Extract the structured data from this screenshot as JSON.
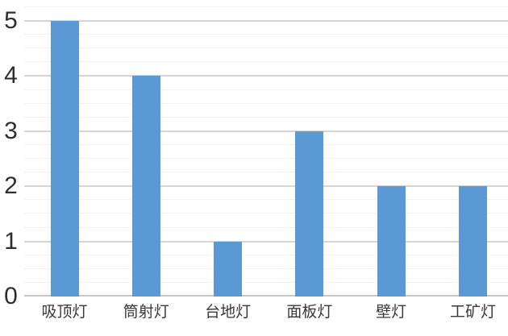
{
  "chart_data": {
    "type": "bar",
    "title": "",
    "xlabel": "",
    "ylabel": "",
    "categories": [
      "吸顶灯",
      "筒射灯",
      "台地灯",
      "面板灯",
      "壁灯",
      "工矿灯"
    ],
    "values": [
      5,
      4,
      1,
      3,
      2,
      2
    ],
    "ylim": [
      0,
      5.4
    ],
    "yticks": [
      0,
      1,
      2,
      3,
      4,
      5
    ],
    "ytick_labels": [
      "0",
      "1",
      "2",
      "3",
      "4",
      "5"
    ],
    "minor_grid_interval": 0.25,
    "grid": "on",
    "legend": "none",
    "bar_color": "#5a99d3",
    "background_color": "#ffffff",
    "major_grid_color": "#d4d4d8",
    "minor_grid_color": "#f1f1f3",
    "axis_line_color": "#c6c6cb",
    "ytick_label_color": "#2e2e30",
    "xtick_label_color": "#38383a"
  }
}
